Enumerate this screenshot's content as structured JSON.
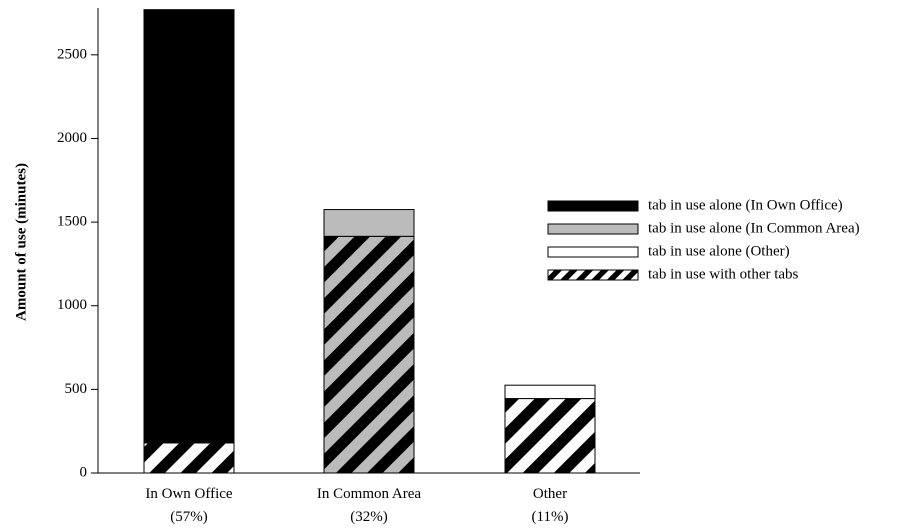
{
  "chart_data": {
    "type": "bar",
    "stacked": true,
    "title": "",
    "xlabel": "",
    "ylabel": "Amount of use (minutes)",
    "ylim": [
      0,
      2780
    ],
    "yticks": [
      0,
      500,
      1000,
      1500,
      2000,
      2500
    ],
    "grid": false,
    "legend_position": "right",
    "categories": [
      {
        "name": "In Own Office",
        "share": "(57%)"
      },
      {
        "name": "In Common Area",
        "share": "(32%)"
      },
      {
        "name": "Other",
        "share": "(11%)"
      }
    ],
    "series": [
      {
        "name": "tab in use with other tabs",
        "fill": "hatch",
        "color": "#000000",
        "values": [
          180,
          1415,
          445
        ]
      },
      {
        "name": "tab in use alone (In Own Office)",
        "fill": "solid",
        "color": "#000000",
        "values": [
          2590,
          0,
          0
        ]
      },
      {
        "name": "tab in use alone (In Common Area)",
        "fill": "solid",
        "color": "#bbbbbb",
        "values": [
          0,
          160,
          0
        ]
      },
      {
        "name": "tab in use alone (Other)",
        "fill": "solid",
        "color": "#ffffff",
        "values": [
          0,
          0,
          80
        ]
      }
    ],
    "legend_order": [
      "tab in use alone (In Own Office)",
      "tab in use alone (In Common Area)",
      "tab in use alone (Other)",
      "tab in use with other tabs"
    ]
  }
}
